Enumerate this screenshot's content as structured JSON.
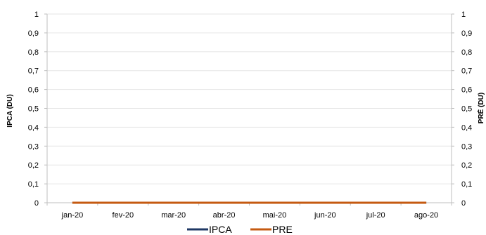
{
  "chart_data": {
    "type": "line",
    "categories": [
      "jan-20",
      "fev-20",
      "mar-20",
      "abr-20",
      "mai-20",
      "jun-20",
      "jul-20",
      "ago-20"
    ],
    "series": [
      {
        "name": "IPCA",
        "axis": "left",
        "color": "#1f3864",
        "values": [
          0,
          0,
          0,
          0,
          0,
          0,
          0,
          0
        ]
      },
      {
        "name": "PRE",
        "axis": "right",
        "color": "#c55a11",
        "values": [
          0,
          0,
          0,
          0,
          0,
          0,
          0,
          0
        ]
      }
    ],
    "ylabel_left": "IPCA (DU)",
    "ylabel_right": "PRÉ (DU)",
    "ylim_left": [
      0,
      1
    ],
    "ylim_right": [
      0,
      1
    ],
    "yticks": [
      "0",
      "0,1",
      "0,2",
      "0,3",
      "0,4",
      "0,5",
      "0,6",
      "0,7",
      "0,8",
      "0,9",
      "1"
    ],
    "grid": true,
    "legend_position": "bottom"
  }
}
